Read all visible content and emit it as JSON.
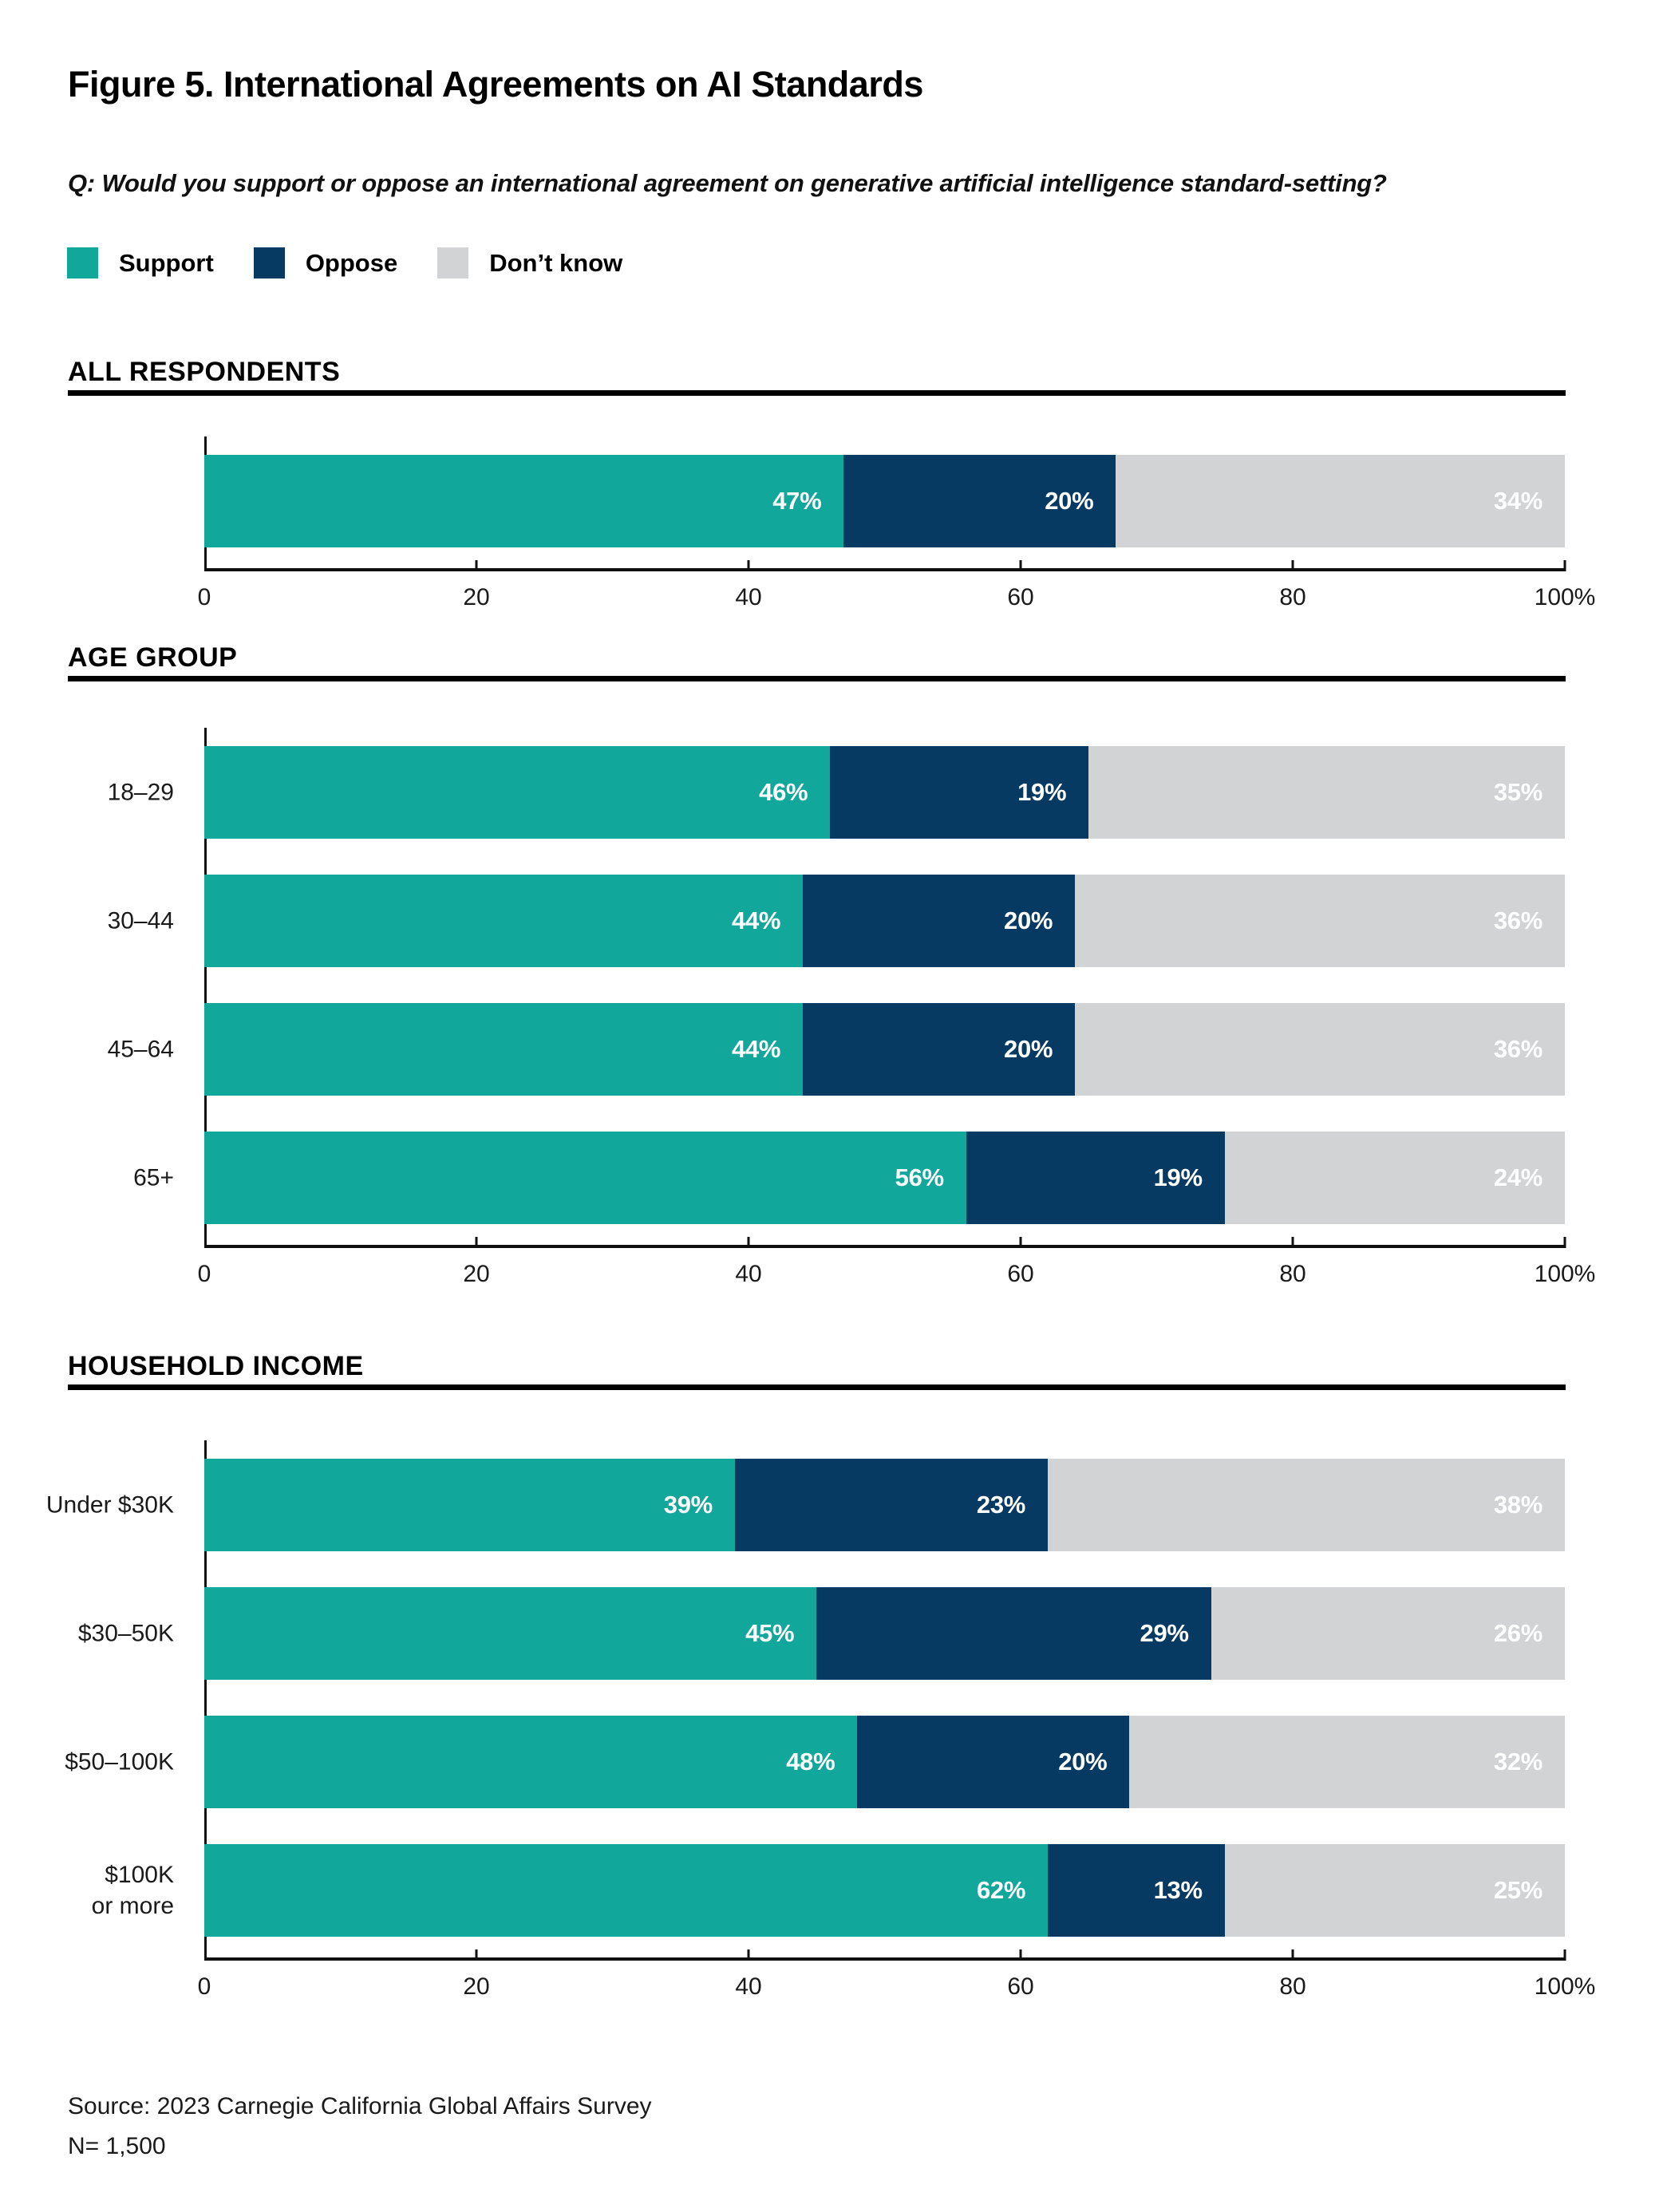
{
  "title": "Figure 5. International Agreements on AI Standards",
  "question": "Q: Would you support or oppose an international agreement on generative artificial intelligence standard-setting?",
  "legend": [
    {
      "label": "Support",
      "color": "#12A79B"
    },
    {
      "label": "Oppose",
      "color": "#063A63"
    },
    {
      "label": "Don’t know",
      "color": "#D1D3D4"
    }
  ],
  "x_axis": {
    "tick_labels": [
      "0",
      "20",
      "40",
      "60",
      "80",
      "100%"
    ],
    "tick_positions": [
      0,
      20,
      40,
      60,
      80,
      100
    ]
  },
  "chart_data": [
    {
      "type": "bar",
      "orientation": "horizontal",
      "stacked": true,
      "section": "ALL RESPONDENTS",
      "categories": [
        ""
      ],
      "series": [
        {
          "name": "Support",
          "values": [
            47
          ]
        },
        {
          "name": "Oppose",
          "values": [
            20
          ]
        },
        {
          "name": "Don’t know",
          "values": [
            34
          ]
        }
      ],
      "xlim": [
        0,
        100
      ],
      "value_suffix": "%"
    },
    {
      "type": "bar",
      "orientation": "horizontal",
      "stacked": true,
      "section": "AGE GROUP",
      "categories": [
        "18–29",
        "30–44",
        "45–64",
        "65+"
      ],
      "series": [
        {
          "name": "Support",
          "values": [
            46,
            44,
            44,
            56
          ]
        },
        {
          "name": "Oppose",
          "values": [
            19,
            20,
            20,
            19
          ]
        },
        {
          "name": "Don’t know",
          "values": [
            35,
            36,
            36,
            24
          ]
        }
      ],
      "xlim": [
        0,
        100
      ],
      "value_suffix": "%"
    },
    {
      "type": "bar",
      "orientation": "horizontal",
      "stacked": true,
      "section": "HOUSEHOLD INCOME",
      "categories": [
        "Under $30K",
        "$30–50K",
        "$50–100K",
        "$100K\nor more"
      ],
      "series": [
        {
          "name": "Support",
          "values": [
            39,
            45,
            48,
            62
          ]
        },
        {
          "name": "Oppose",
          "values": [
            23,
            29,
            20,
            13
          ]
        },
        {
          "name": "Don’t know",
          "values": [
            38,
            26,
            32,
            25
          ]
        }
      ],
      "xlim": [
        0,
        100
      ],
      "value_suffix": "%"
    }
  ],
  "source": {
    "line1": "Source: 2023 Carnegie California Global Affairs Survey",
    "line2": "N= 1,500"
  }
}
